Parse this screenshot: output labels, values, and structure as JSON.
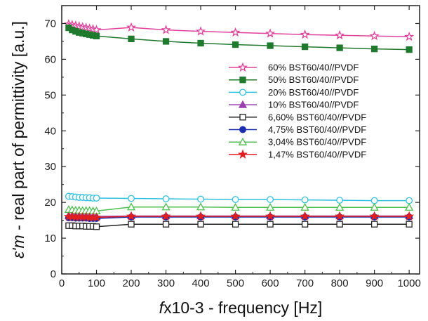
{
  "chart_data": {
    "type": "line",
    "xlabel_italic": "f",
    "xlabel_rest": "x10-3 - frequency [Hz]",
    "ylabel_symbol": "ε'm",
    "ylabel_rest": " - real part of permittivity [a.u.]",
    "xlim": [
      0,
      1030
    ],
    "ylim": [
      0,
      75
    ],
    "x_ticks": [
      0,
      100,
      200,
      300,
      400,
      500,
      600,
      700,
      800,
      900,
      1000
    ],
    "y_ticks": [
      0,
      10,
      20,
      30,
      40,
      50,
      60,
      70
    ],
    "grid": false,
    "legend_position": "right-middle",
    "x": [
      20,
      30,
      40,
      50,
      60,
      70,
      80,
      90,
      100,
      200,
      300,
      400,
      500,
      600,
      700,
      800,
      900,
      1000
    ],
    "series": [
      {
        "name": "60% BST60/40//PVDF",
        "color": "#e0409a",
        "marker": "star-open",
        "values": [
          69.8,
          69.6,
          69.4,
          69.2,
          69.0,
          68.8,
          68.6,
          68.4,
          68.2,
          68.9,
          68.2,
          67.8,
          67.5,
          67.2,
          66.9,
          66.7,
          66.5,
          66.3
        ]
      },
      {
        "name": "50% BST60/40//PVDF",
        "color": "#1f7a2e",
        "marker": "square-filled",
        "values": [
          68.8,
          68.2,
          67.8,
          67.5,
          67.3,
          67.1,
          66.9,
          66.7,
          66.5,
          65.7,
          65.0,
          64.5,
          64.1,
          63.8,
          63.5,
          63.2,
          62.9,
          62.7
        ]
      },
      {
        "name": "20% BST60/40//PVDF",
        "color": "#30c0e0",
        "marker": "circle-open",
        "values": [
          21.7,
          21.6,
          21.5,
          21.4,
          21.4,
          21.3,
          21.3,
          21.2,
          21.2,
          21.1,
          21.0,
          20.9,
          20.8,
          20.8,
          20.7,
          20.6,
          20.5,
          20.5
        ]
      },
      {
        "name": "10% BST60/40//PVDF",
        "color": "#9a3fb0",
        "marker": "triangle-filled",
        "values": [
          16.3,
          16.3,
          16.2,
          16.2,
          16.2,
          16.2,
          16.1,
          16.1,
          16.1,
          16.2,
          16.2,
          16.2,
          16.2,
          16.2,
          16.2,
          16.2,
          16.2,
          16.2
        ]
      },
      {
        "name": "6,60% BST60/40//PVDF",
        "color": "#222222",
        "marker": "square-open",
        "values": [
          13.5,
          13.5,
          13.4,
          13.4,
          13.4,
          13.3,
          13.3,
          13.3,
          13.2,
          13.9,
          13.9,
          13.9,
          13.9,
          13.9,
          13.9,
          13.9,
          13.9,
          13.9
        ]
      },
      {
        "name": "4,75% BST60/40//PVDF",
        "color": "#1a2fb0",
        "marker": "circle-filled",
        "values": [
          15.7,
          15.7,
          15.6,
          15.6,
          15.6,
          15.6,
          15.5,
          15.5,
          15.5,
          15.9,
          15.9,
          15.9,
          15.9,
          15.9,
          15.9,
          15.9,
          15.9,
          15.9
        ]
      },
      {
        "name": "3,04% BST60/40//PVDF",
        "color": "#4cbf4c",
        "marker": "triangle-open",
        "values": [
          18.0,
          17.9,
          17.8,
          17.8,
          17.7,
          17.7,
          17.7,
          17.6,
          17.6,
          18.7,
          18.7,
          18.7,
          18.6,
          18.6,
          18.6,
          18.6,
          18.6,
          18.6
        ]
      },
      {
        "name": "1,47% BST60/40//PVDF",
        "color": "#e02020",
        "marker": "star-filled",
        "values": [
          16.0,
          16.0,
          15.9,
          15.9,
          15.9,
          15.9,
          15.8,
          15.8,
          15.8,
          16.1,
          16.1,
          16.1,
          16.1,
          16.1,
          16.1,
          16.1,
          16.1,
          16.1
        ]
      }
    ]
  }
}
